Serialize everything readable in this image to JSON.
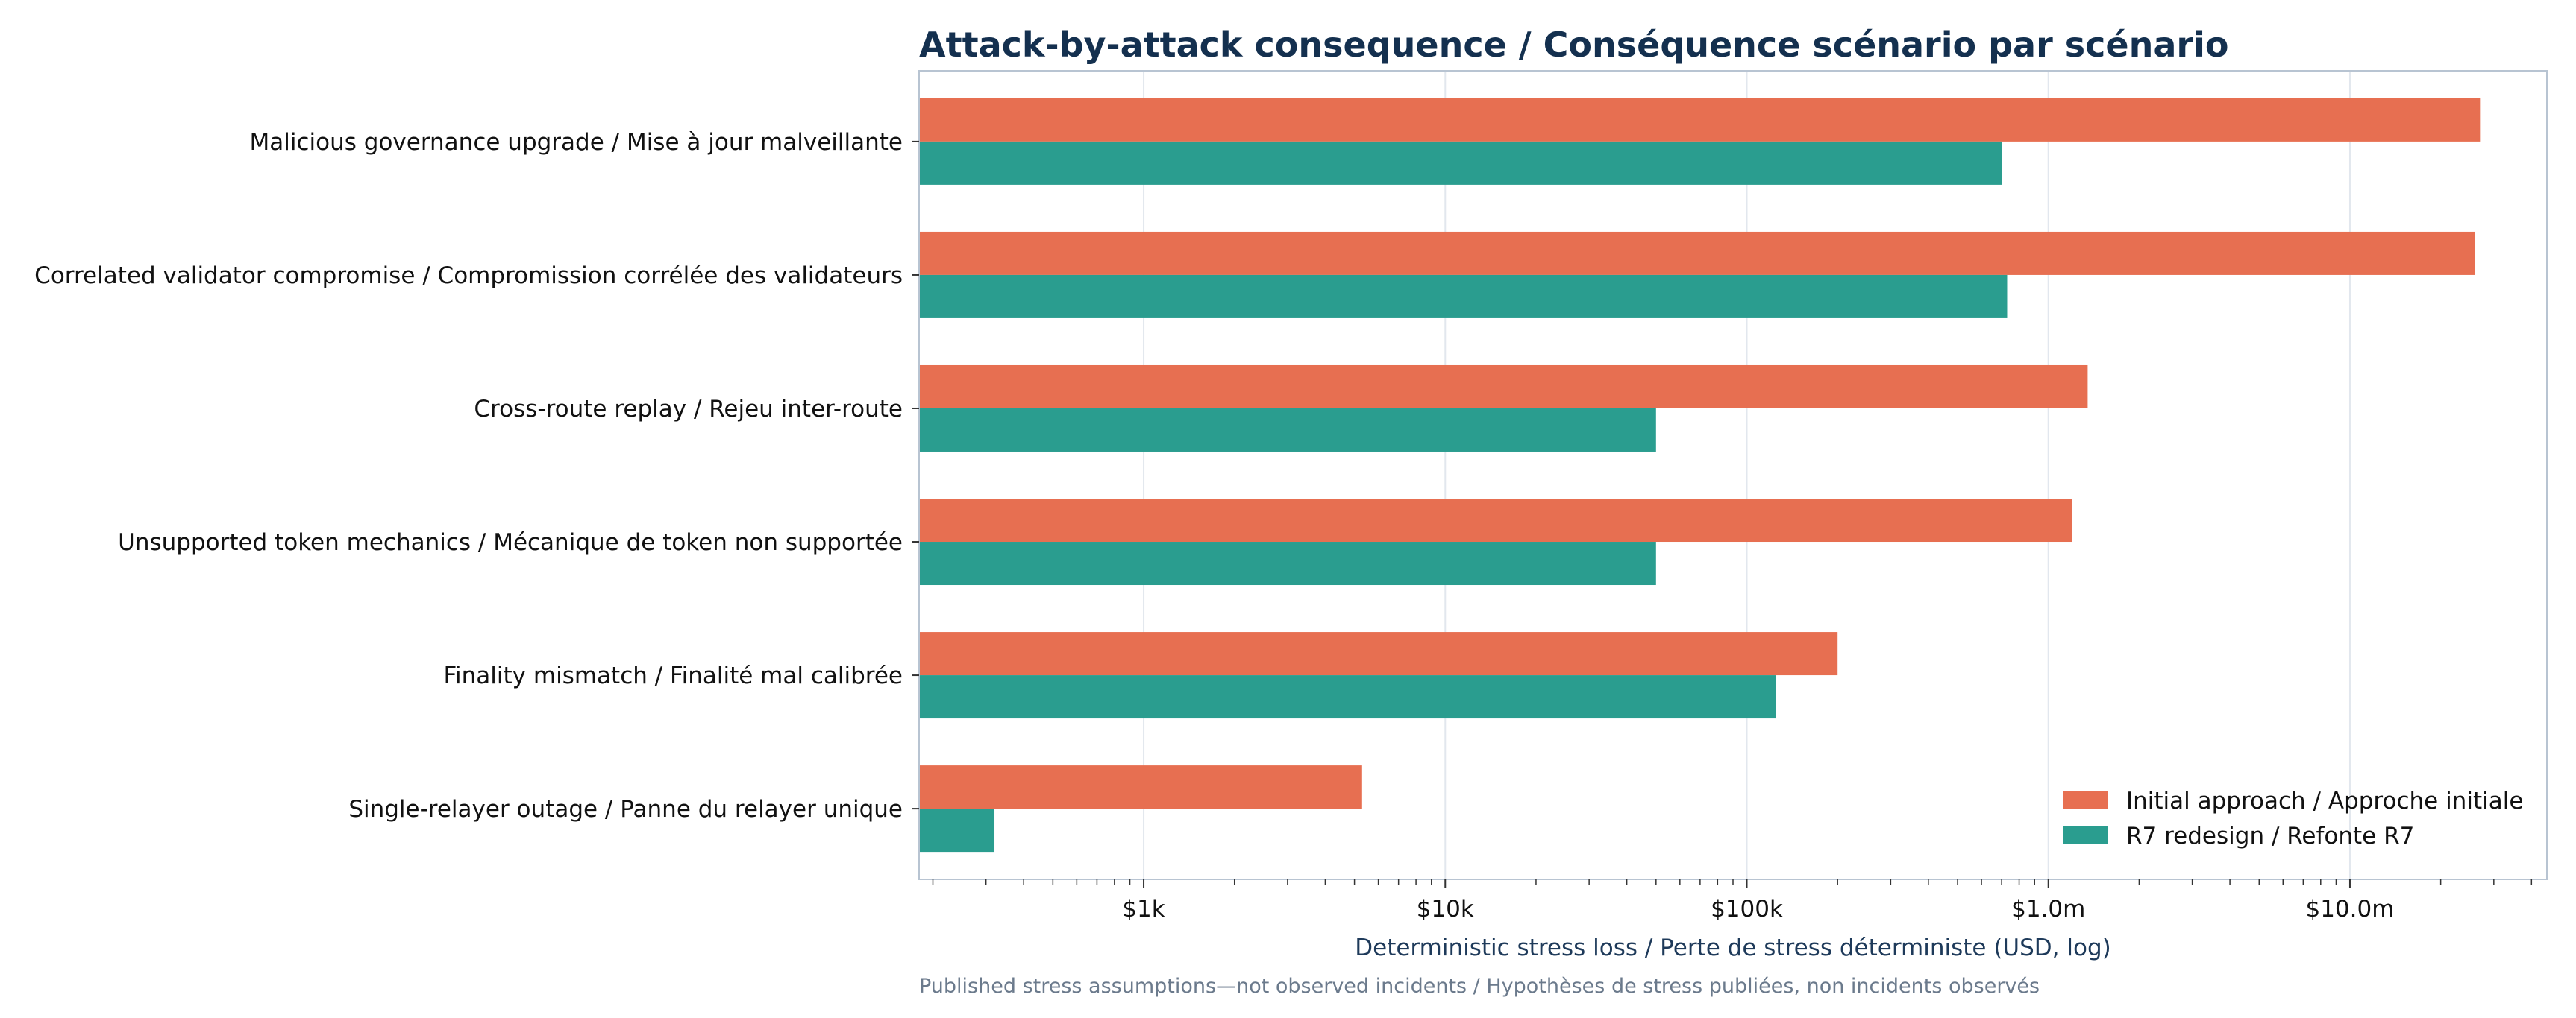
{
  "chart_data": {
    "type": "bar",
    "orientation": "horizontal",
    "title": "Attack-by-attack consequence / Conséquence scénario par scénario",
    "xlabel": "Deterministic stress loss / Perte de stress déterministe (USD, log)",
    "ylabel": "",
    "xscale": "log",
    "xlim": [
      180,
      45000000
    ],
    "x_ticks": [
      {
        "value": 1000,
        "label": "$1k"
      },
      {
        "value": 10000,
        "label": "$10k"
      },
      {
        "value": 100000,
        "label": "$100k"
      },
      {
        "value": 1000000,
        "label": "$1.0m"
      },
      {
        "value": 10000000,
        "label": "$10.0m"
      }
    ],
    "grid": "vertical",
    "legend_position": "lower-right",
    "categories": [
      "Malicious governance upgrade / Mise à jour malveillante",
      "Correlated validator compromise / Compromission corrélée des validateurs",
      "Cross-route replay / Rejeu inter-route",
      "Unsupported token mechanics / Mécanique de token non supportée",
      "Finality mismatch / Finalité mal calibrée",
      "Single-relayer outage / Panne du relayer unique"
    ],
    "series": [
      {
        "name": "Initial approach / Approche initiale",
        "color": "#e76f51",
        "values": [
          27000000,
          26000000,
          1350000,
          1200000,
          200000,
          5300
        ]
      },
      {
        "name": "R7 redesign / Refonte R7",
        "color": "#2a9d8f",
        "values": [
          700000,
          730000,
          50000,
          50000,
          125000,
          320
        ]
      }
    ],
    "annotation": "Published stress assumptions—not observed incidents / Hypothèses de stress publiées, non incidents observés"
  }
}
